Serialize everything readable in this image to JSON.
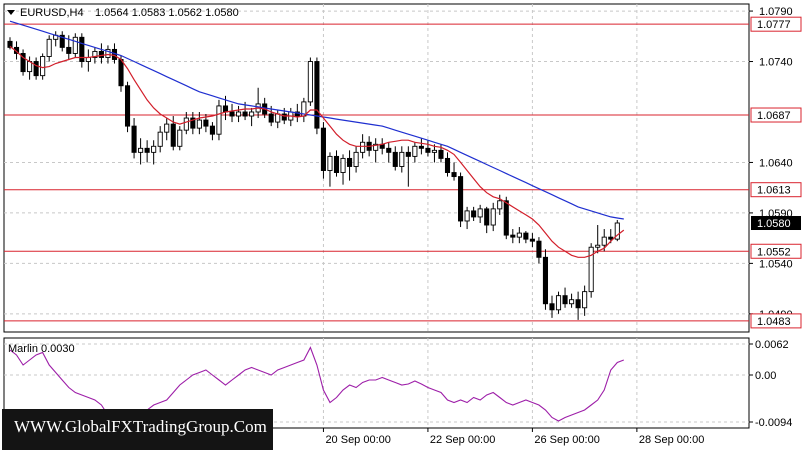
{
  "header": {
    "symbol": "EURUSD,H4",
    "ohlc": "1.0564 1.0583 1.0562 1.0580"
  },
  "watermark": "WWW.GlobalFXTradingGroup.Com",
  "colors": {
    "background": "#ffffff",
    "candle_bull": "#ffffff",
    "candle_bear": "#000000",
    "ma_slow": "#1f2fd0",
    "ma_fast": "#d21e2a",
    "level_line": "#d9232e",
    "oscillator": "#9d1ea8",
    "grid": "#c8c8c8"
  },
  "chart_data": [
    {
      "type": "candlestick",
      "symbol": "EURUSD",
      "timeframe": "H4",
      "ylim": [
        1.0472,
        1.0797
      ],
      "yticks": [
        1.079,
        1.074,
        1.064,
        1.059,
        1.054,
        1.049
      ],
      "ytick_labels": [
        "1.0790",
        "1.0740",
        "1.0640",
        "1.0590",
        "1.0540",
        "1.0490"
      ],
      "xtick_labels": [
        "20 Sep 00:00",
        "22 Sep 00:00",
        "26 Sep 00:00",
        "28 Sep 00:00"
      ],
      "xtick_index": [
        48,
        64,
        80,
        96
      ],
      "last_price": 1.058,
      "levels": [
        1.0777,
        1.0687,
        1.0613,
        1.0552,
        1.0483
      ],
      "level_labels": [
        "1.0777",
        "1.0687",
        "1.0613",
        "1.0552",
        "1.0483"
      ],
      "candles": [
        [
          1.076,
          1.0764,
          1.0752,
          1.0754
        ],
        [
          1.0754,
          1.076,
          1.0742,
          1.0748
        ],
        [
          1.0748,
          1.0752,
          1.0726,
          1.073
        ],
        [
          1.073,
          1.0745,
          1.0722,
          1.074
        ],
        [
          1.074,
          1.0744,
          1.0722,
          1.0726
        ],
        [
          1.0726,
          1.0748,
          1.0722,
          1.0745
        ],
        [
          1.0745,
          1.0766,
          1.074,
          1.0762
        ],
        [
          1.0762,
          1.077,
          1.0755,
          1.0766
        ],
        [
          1.0766,
          1.077,
          1.075,
          1.0754
        ],
        [
          1.0754,
          1.0766,
          1.0742,
          1.0748
        ],
        [
          1.0748,
          1.0768,
          1.0744,
          1.0764
        ],
        [
          1.0764,
          1.0768,
          1.0734,
          1.074
        ],
        [
          1.074,
          1.0752,
          1.073,
          1.0744
        ],
        [
          1.0744,
          1.0754,
          1.0738,
          1.075
        ],
        [
          1.075,
          1.0758,
          1.0738,
          1.0744
        ],
        [
          1.0744,
          1.0756,
          1.0738,
          1.0752
        ],
        [
          1.0752,
          1.0758,
          1.0738,
          1.0742
        ],
        [
          1.0742,
          1.0746,
          1.071,
          1.0716
        ],
        [
          1.0716,
          1.072,
          1.067,
          1.0676
        ],
        [
          1.0676,
          1.0684,
          1.0644,
          1.065
        ],
        [
          1.065,
          1.0664,
          1.0638,
          1.0654
        ],
        [
          1.0654,
          1.0662,
          1.064,
          1.065
        ],
        [
          1.065,
          1.0662,
          1.0638,
          1.0656
        ],
        [
          1.0656,
          1.0676,
          1.065,
          1.067
        ],
        [
          1.067,
          1.0684,
          1.0662,
          1.0678
        ],
        [
          1.0678,
          1.0686,
          1.0652,
          1.0656
        ],
        [
          1.0656,
          1.0676,
          1.0652,
          1.0672
        ],
        [
          1.0672,
          1.069,
          1.0668,
          1.0684
        ],
        [
          1.0684,
          1.069,
          1.0668,
          1.0674
        ],
        [
          1.0674,
          1.069,
          1.0668,
          1.0682
        ],
        [
          1.0682,
          1.0688,
          1.067,
          1.0676
        ],
        [
          1.0676,
          1.068,
          1.0662,
          1.0668
        ],
        [
          1.0668,
          1.0702,
          1.0662,
          1.0696
        ],
        [
          1.0696,
          1.0706,
          1.0682,
          1.069
        ],
        [
          1.069,
          1.0698,
          1.068,
          1.0686
        ],
        [
          1.0686,
          1.0696,
          1.068,
          1.069
        ],
        [
          1.069,
          1.07,
          1.0682,
          1.0686
        ],
        [
          1.0686,
          1.0694,
          1.0676,
          1.069
        ],
        [
          1.069,
          1.0714,
          1.0684,
          1.0698
        ],
        [
          1.0698,
          1.0704,
          1.0684,
          1.0688
        ],
        [
          1.0688,
          1.0696,
          1.0676,
          1.068
        ],
        [
          1.068,
          1.0692,
          1.0674,
          1.0688
        ],
        [
          1.0688,
          1.0694,
          1.0678,
          1.0682
        ],
        [
          1.0682,
          1.0694,
          1.0676,
          1.069
        ],
        [
          1.069,
          1.0698,
          1.068,
          1.0686
        ],
        [
          1.0686,
          1.0704,
          1.068,
          1.07
        ],
        [
          1.07,
          1.0744,
          1.0696,
          1.074
        ],
        [
          1.074,
          1.0744,
          1.0668,
          1.0674
        ],
        [
          1.0674,
          1.068,
          1.0624,
          1.0632
        ],
        [
          1.0632,
          1.065,
          1.0616,
          1.0646
        ],
        [
          1.0646,
          1.0652,
          1.0626,
          1.063
        ],
        [
          1.063,
          1.0648,
          1.0618,
          1.0644
        ],
        [
          1.0644,
          1.0652,
          1.0622,
          1.0636
        ],
        [
          1.0636,
          1.0656,
          1.063,
          1.065
        ],
        [
          1.065,
          1.0668,
          1.0644,
          1.066
        ],
        [
          1.066,
          1.0666,
          1.0646,
          1.0652
        ],
        [
          1.0652,
          1.0664,
          1.064,
          1.0658
        ],
        [
          1.0658,
          1.0664,
          1.0648,
          1.0654
        ],
        [
          1.0654,
          1.066,
          1.064,
          1.065
        ],
        [
          1.065,
          1.0656,
          1.0632,
          1.0636
        ],
        [
          1.0636,
          1.0656,
          1.063,
          1.065
        ],
        [
          1.065,
          1.0656,
          1.0616,
          1.0646
        ],
        [
          1.0646,
          1.066,
          1.064,
          1.0656
        ],
        [
          1.0656,
          1.0664,
          1.0648,
          1.0654
        ],
        [
          1.0654,
          1.0662,
          1.0646,
          1.065
        ],
        [
          1.065,
          1.0658,
          1.064,
          1.0652
        ],
        [
          1.0652,
          1.0658,
          1.064,
          1.0644
        ],
        [
          1.0644,
          1.065,
          1.0626,
          1.063
        ],
        [
          1.063,
          1.064,
          1.0622,
          1.0626
        ],
        [
          1.0626,
          1.063,
          1.0576,
          1.0582
        ],
        [
          1.0582,
          1.0596,
          1.0574,
          1.0592
        ],
        [
          1.0592,
          1.0596,
          1.0582,
          1.0586
        ],
        [
          1.0586,
          1.0598,
          1.058,
          1.0594
        ],
        [
          1.0594,
          1.0596,
          1.057,
          1.0578
        ],
        [
          1.0578,
          1.06,
          1.0572,
          1.0594
        ],
        [
          1.0594,
          1.0608,
          1.0588,
          1.0602
        ],
        [
          1.0602,
          1.0606,
          1.0564,
          1.0568
        ],
        [
          1.0568,
          1.0574,
          1.056,
          1.0566
        ],
        [
          1.0566,
          1.0576,
          1.056,
          1.057
        ],
        [
          1.057,
          1.0572,
          1.056,
          1.0564
        ],
        [
          1.0564,
          1.057,
          1.0556,
          1.0562
        ],
        [
          1.0562,
          1.0566,
          1.054,
          1.0546
        ],
        [
          1.0546,
          1.0554,
          1.0494,
          1.05
        ],
        [
          1.05,
          1.0508,
          1.0486,
          1.0494
        ],
        [
          1.0494,
          1.0512,
          1.049,
          1.0508
        ],
        [
          1.0508,
          1.0516,
          1.0496,
          1.05
        ],
        [
          1.05,
          1.051,
          1.0496,
          1.0504
        ],
        [
          1.0504,
          1.0512,
          1.0484,
          1.0496
        ],
        [
          1.0496,
          1.0518,
          1.0488,
          1.0512
        ],
        [
          1.0512,
          1.056,
          1.0506,
          1.0556
        ],
        [
          1.0556,
          1.0578,
          1.055,
          1.0558
        ],
        [
          1.0558,
          1.0574,
          1.0552,
          1.0566
        ],
        [
          1.0566,
          1.0574,
          1.056,
          1.0564
        ],
        [
          1.0564,
          1.0583,
          1.0562,
          1.058
        ]
      ],
      "ma_fast": [
        1.0755,
        1.075,
        1.0744,
        1.074,
        1.0736,
        1.0734,
        1.0735,
        1.0738,
        1.074,
        1.0742,
        1.0744,
        1.0744,
        1.0744,
        1.0745,
        1.0746,
        1.0747,
        1.0746,
        1.0742,
        1.0733,
        1.0722,
        1.0712,
        1.0702,
        1.0694,
        1.0688,
        1.0684,
        1.068,
        1.0678,
        1.068,
        1.0682,
        1.0684,
        1.0685,
        1.0686,
        1.0688,
        1.069,
        1.0691,
        1.0692,
        1.0693,
        1.0693,
        1.0694,
        1.0693,
        1.069,
        1.0688,
        1.0686,
        1.0686,
        1.0685,
        1.0686,
        1.0692,
        1.0692,
        1.0684,
        1.0676,
        1.0668,
        1.0662,
        1.0658,
        1.0656,
        1.0656,
        1.0656,
        1.0657,
        1.0658,
        1.066,
        1.0661,
        1.0662,
        1.0662,
        1.066,
        1.0659,
        1.0658,
        1.0656,
        1.0655,
        1.0652,
        1.0648,
        1.064,
        1.0632,
        1.0624,
        1.0616,
        1.061,
        1.0606,
        1.0604,
        1.06,
        1.0596,
        1.0592,
        1.0588,
        1.0584,
        1.0578,
        1.057,
        1.0562,
        1.0556,
        1.0552,
        1.0548,
        1.0546,
        1.0546,
        1.0548,
        1.0552,
        1.0555,
        1.0562,
        1.0568,
        1.0573
      ],
      "ma_slow": [
        1.078,
        1.0778,
        1.0776,
        1.0774,
        1.0772,
        1.077,
        1.0768,
        1.0766,
        1.0764,
        1.0762,
        1.076,
        1.0758,
        1.0756,
        1.0754,
        1.0752,
        1.075,
        1.0748,
        1.0746,
        1.0743,
        1.074,
        1.0737,
        1.0734,
        1.0731,
        1.0728,
        1.0725,
        1.0722,
        1.0719,
        1.0716,
        1.0713,
        1.071,
        1.0708,
        1.0706,
        1.0704,
        1.0702,
        1.07,
        1.0698,
        1.0697,
        1.0696,
        1.0695,
        1.0694,
        1.0693,
        1.0692,
        1.0691,
        1.069,
        1.0689,
        1.0688,
        1.0687,
        1.0686,
        1.0685,
        1.0684,
        1.0683,
        1.0682,
        1.0681,
        1.068,
        1.0679,
        1.0678,
        1.0677,
        1.0676,
        1.0674,
        1.0672,
        1.067,
        1.0668,
        1.0666,
        1.0664,
        1.0662,
        1.066,
        1.0658,
        1.0656,
        1.0653,
        1.065,
        1.0647,
        1.0644,
        1.0641,
        1.0638,
        1.0635,
        1.0632,
        1.0629,
        1.0626,
        1.0623,
        1.062,
        1.0617,
        1.0614,
        1.0611,
        1.0608,
        1.0605,
        1.0602,
        1.0599,
        1.0596,
        1.0594,
        1.0592,
        1.059,
        1.0588,
        1.0586,
        1.0585,
        1.0584
      ]
    },
    {
      "type": "line",
      "title": "Marlin 0.0030",
      "ylim": [
        -0.0106,
        0.0074
      ],
      "yticks": [
        0.0062,
        0.0,
        -0.0094
      ],
      "ytick_labels": [
        "0.0062",
        "0.00",
        "-0.0094"
      ],
      "values": [
        0.005,
        0.004,
        0.002,
        0.003,
        0.004,
        0.0045,
        0.002,
        0.0005,
        -0.001,
        -0.0025,
        -0.0035,
        -0.004,
        -0.0045,
        -0.005,
        -0.006,
        -0.008,
        -0.0095,
        -0.01,
        -0.009,
        -0.0085,
        -0.008,
        -0.007,
        -0.006,
        -0.0055,
        -0.005,
        -0.0035,
        -0.002,
        -0.001,
        0.0,
        0.0005,
        0.001,
        0.0,
        -0.001,
        -0.002,
        -0.001,
        0.0,
        0.001,
        0.0015,
        0.001,
        0.0005,
        0.0,
        0.001,
        0.0015,
        0.002,
        0.0025,
        0.003,
        0.0055,
        0.002,
        -0.003,
        -0.0055,
        -0.0045,
        -0.003,
        -0.002,
        -0.0025,
        -0.0015,
        -0.001,
        -0.001,
        -0.0005,
        -0.001,
        -0.0015,
        -0.002,
        -0.0018,
        -0.0012,
        -0.0018,
        -0.0025,
        -0.003,
        -0.0035,
        -0.005,
        -0.0055,
        -0.005,
        -0.0055,
        -0.0045,
        -0.005,
        -0.004,
        -0.0035,
        -0.0045,
        -0.0055,
        -0.006,
        -0.0055,
        -0.005,
        -0.0055,
        -0.006,
        -0.007,
        -0.0085,
        -0.0092,
        -0.0085,
        -0.008,
        -0.0075,
        -0.007,
        -0.006,
        -0.005,
        -0.003,
        0.001,
        0.0025,
        0.003
      ]
    }
  ]
}
